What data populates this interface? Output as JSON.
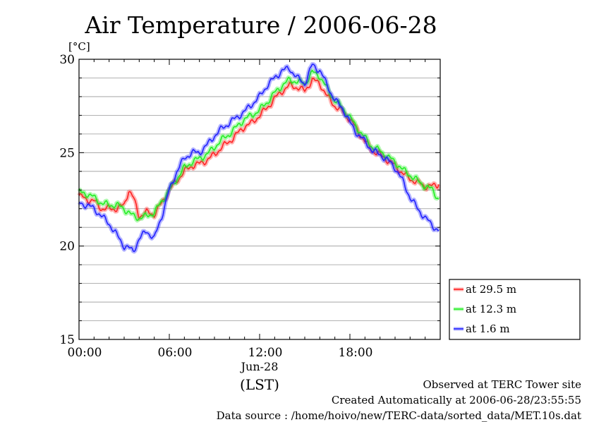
{
  "title": "Air Temperature / 2006-06-28",
  "footer": {
    "observed": "Observed at TERC Tower site",
    "created": "Created Automatically at 2006-06-28/23:55:55",
    "source": "Data source : /home/hoivo/new/TERC-data/sorted_data/MET.10s.dat"
  },
  "chart_data": {
    "type": "line",
    "title": "Air Temperature / 2006-06-28",
    "ylabel": "[°C]",
    "xlabel": "(LST)",
    "x_date_label": "Jun-28",
    "xlim": [
      0,
      24
    ],
    "ylim": [
      15,
      30
    ],
    "x_ticks": [
      {
        "value": 0,
        "label": "00:00"
      },
      {
        "value": 6,
        "label": "06:00"
      },
      {
        "value": 12,
        "label": "12:00"
      },
      {
        "value": 18,
        "label": "18:00"
      }
    ],
    "y_ticks": [
      {
        "value": 15,
        "label": "15"
      },
      {
        "value": 20,
        "label": "20"
      },
      {
        "value": 25,
        "label": "25"
      },
      {
        "value": 30,
        "label": "30"
      }
    ],
    "grid": true,
    "legend_position": "bottom-right outside",
    "x": [
      0,
      0.5,
      1,
      1.5,
      2,
      2.5,
      3,
      3.3,
      3.6,
      4,
      4.5,
      5,
      5.5,
      6,
      6.5,
      7,
      7.5,
      8,
      8.5,
      9,
      9.5,
      10,
      10.5,
      11,
      11.5,
      12,
      12.5,
      13,
      13.5,
      14,
      14.5,
      15,
      15.5,
      16,
      16.5,
      17,
      17.5,
      18,
      18.5,
      19,
      19.5,
      20,
      20.5,
      21,
      21.5,
      22,
      22.5,
      23,
      23.5,
      23.9
    ],
    "series": [
      {
        "name": "at 29.5 m",
        "color": "#ff2222",
        "values": [
          22.7,
          22.5,
          22.4,
          22.0,
          22.0,
          22.0,
          22.2,
          23.0,
          22.6,
          21.6,
          21.8,
          21.7,
          22.3,
          23.0,
          23.5,
          24.0,
          24.3,
          24.4,
          24.6,
          24.9,
          25.3,
          25.6,
          26.0,
          26.4,
          26.6,
          27.0,
          27.4,
          27.9,
          28.3,
          28.6,
          28.5,
          28.3,
          28.9,
          28.7,
          28.0,
          27.5,
          27.2,
          26.8,
          26.2,
          25.6,
          25.1,
          24.9,
          24.6,
          24.3,
          23.9,
          23.6,
          23.4,
          23.2,
          23.2,
          23.3
        ]
      },
      {
        "name": "at 12.3 m",
        "color": "#22ee22",
        "values": [
          22.9,
          22.8,
          22.6,
          22.3,
          22.2,
          22.2,
          22.0,
          21.8,
          21.6,
          21.5,
          21.6,
          21.8,
          22.4,
          23.0,
          23.6,
          24.2,
          24.5,
          24.7,
          24.9,
          25.3,
          25.7,
          26.0,
          26.4,
          26.8,
          27.0,
          27.3,
          27.7,
          28.2,
          28.6,
          28.9,
          28.8,
          28.7,
          29.3,
          29.1,
          28.4,
          27.8,
          27.4,
          26.9,
          26.3,
          25.8,
          25.3,
          25.1,
          24.8,
          24.5,
          24.1,
          23.8,
          23.5,
          23.2,
          23.0,
          22.5
        ]
      },
      {
        "name": "at 1.6 m",
        "color": "#2222ff",
        "values": [
          22.3,
          22.2,
          22.0,
          21.6,
          21.2,
          20.6,
          20.0,
          19.9,
          19.7,
          20.4,
          20.8,
          20.4,
          21.6,
          23.0,
          24.0,
          24.7,
          25.0,
          25.0,
          25.4,
          25.9,
          26.3,
          26.6,
          26.9,
          27.2,
          27.6,
          28.0,
          28.6,
          29.0,
          29.4,
          29.5,
          29.0,
          28.7,
          29.7,
          29.4,
          28.6,
          27.8,
          27.4,
          26.6,
          26.0,
          25.6,
          25.1,
          24.9,
          24.6,
          24.2,
          23.5,
          22.6,
          22.0,
          21.5,
          21.1,
          20.8
        ]
      }
    ]
  }
}
